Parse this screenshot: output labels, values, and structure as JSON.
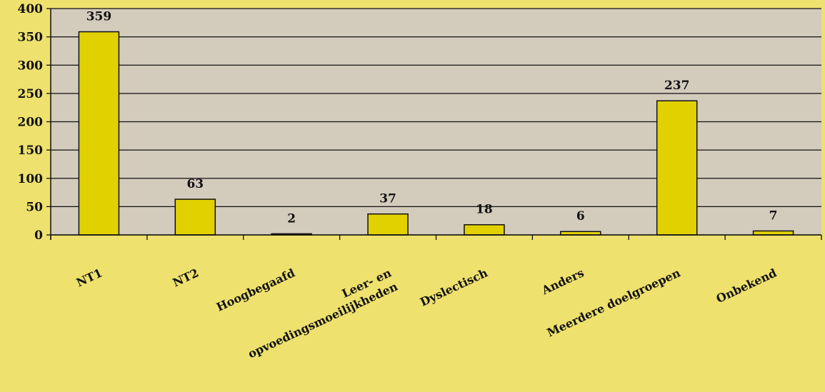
{
  "colors": {
    "page_background": "#eee16e",
    "plot_background": "#d3cbbc",
    "bar_fill": "#e2d100",
    "bar_stroke": "#111111",
    "grid": "#111111"
  },
  "chart_data": {
    "type": "bar",
    "title": "",
    "xlabel": "",
    "ylabel": "",
    "categories": [
      [
        "NT1"
      ],
      [
        "NT2"
      ],
      [
        "Hoogbegaafd"
      ],
      [
        "Leer- en",
        "opvoedingsmoeilijkheden"
      ],
      [
        "Dyslectisch"
      ],
      [
        "Anders"
      ],
      [
        "Meerdere doelgroepen"
      ],
      [
        "Onbekend"
      ]
    ],
    "values": [
      359,
      63,
      2,
      37,
      18,
      6,
      237,
      7
    ],
    "value_labels": [
      "359",
      "63",
      "2",
      "37",
      "18",
      "6",
      "237",
      "7"
    ],
    "ylim": [
      0,
      400
    ],
    "yticks": [
      0,
      50,
      100,
      150,
      200,
      250,
      300,
      350,
      400
    ],
    "ytick_labels": [
      "0",
      "50",
      "100",
      "150",
      "200",
      "250",
      "300",
      "350",
      "400"
    ],
    "grid": true,
    "legend": "none"
  }
}
